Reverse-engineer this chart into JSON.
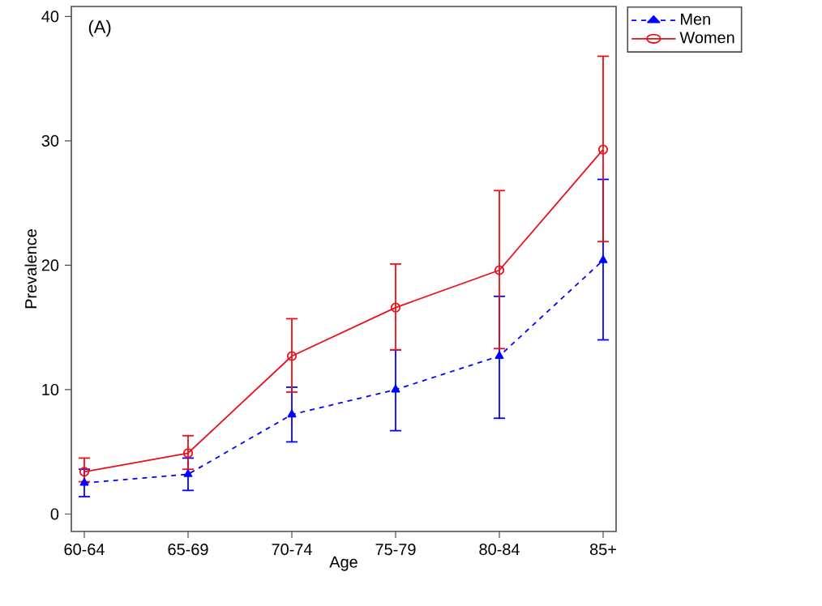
{
  "chart_data": {
    "type": "line",
    "xlabel": "Age",
    "ylabel": "Prevalence",
    "annotations": [
      "(A)"
    ],
    "categories": [
      "60-64",
      "65-69",
      "70-74",
      "75-79",
      "80-84",
      "85+"
    ],
    "series": [
      {
        "name": "Men",
        "color": "#0000ff",
        "marker": "triangle",
        "line_style": "dashed",
        "values": [
          2.5,
          3.2,
          8.0,
          10.0,
          12.7,
          20.4
        ],
        "errors": [
          [
            1.4,
            3.6
          ],
          [
            1.9,
            4.5
          ],
          [
            5.8,
            10.2
          ],
          [
            6.7,
            13.2
          ],
          [
            7.7,
            17.5
          ],
          [
            14.0,
            26.9
          ]
        ]
      },
      {
        "name": "Women",
        "color": "#e8111b",
        "marker": "circle",
        "line_style": "solid",
        "values": [
          3.4,
          4.9,
          12.7,
          16.6,
          19.6,
          29.3
        ],
        "errors": [
          [
            2.6,
            4.5
          ],
          [
            3.6,
            6.3
          ],
          [
            9.8,
            15.7
          ],
          [
            13.2,
            20.1
          ],
          [
            13.3,
            26.0
          ],
          [
            21.9,
            36.8
          ]
        ]
      }
    ],
    "ylim": [
      -1.4,
      40.8
    ],
    "yticks": [
      0,
      10,
      20,
      30,
      40
    ],
    "grid": false,
    "legend": "top right"
  }
}
